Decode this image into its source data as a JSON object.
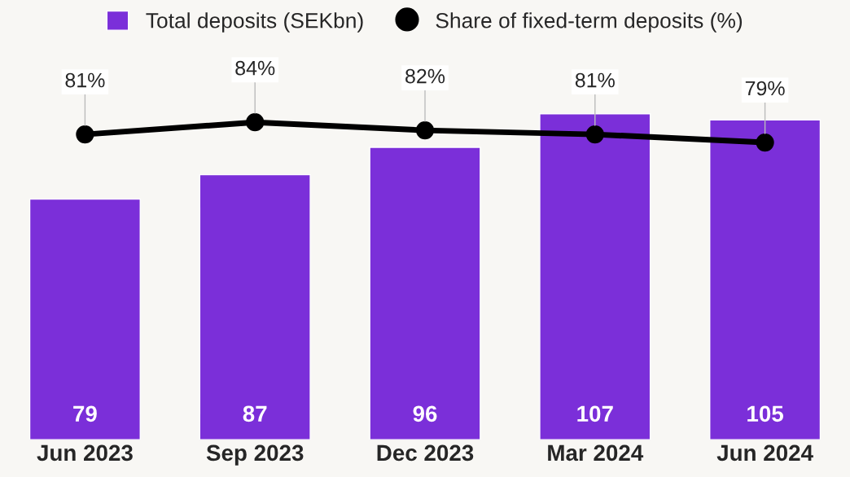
{
  "chart_data": {
    "type": "bar",
    "categories": [
      "Jun 2023",
      "Sep 2023",
      "Dec 2023",
      "Mar 2024",
      "Jun 2024"
    ],
    "series": [
      {
        "name": "Total deposits (SEKbn)",
        "color": "#7b2fd9",
        "values": [
          79,
          87,
          96,
          107,
          105
        ]
      },
      {
        "name": "Share of fixed-term deposits (%)",
        "type": "line",
        "axis": "y2",
        "color": "#000000",
        "marker": "circle",
        "values": [
          81,
          84,
          82,
          81,
          79
        ],
        "value_labels": [
          "81%",
          "84%",
          "82%",
          "81%",
          "79%"
        ]
      }
    ],
    "tick_labels": "x",
    "data_labels": true,
    "legend": "top",
    "grid": false
  }
}
